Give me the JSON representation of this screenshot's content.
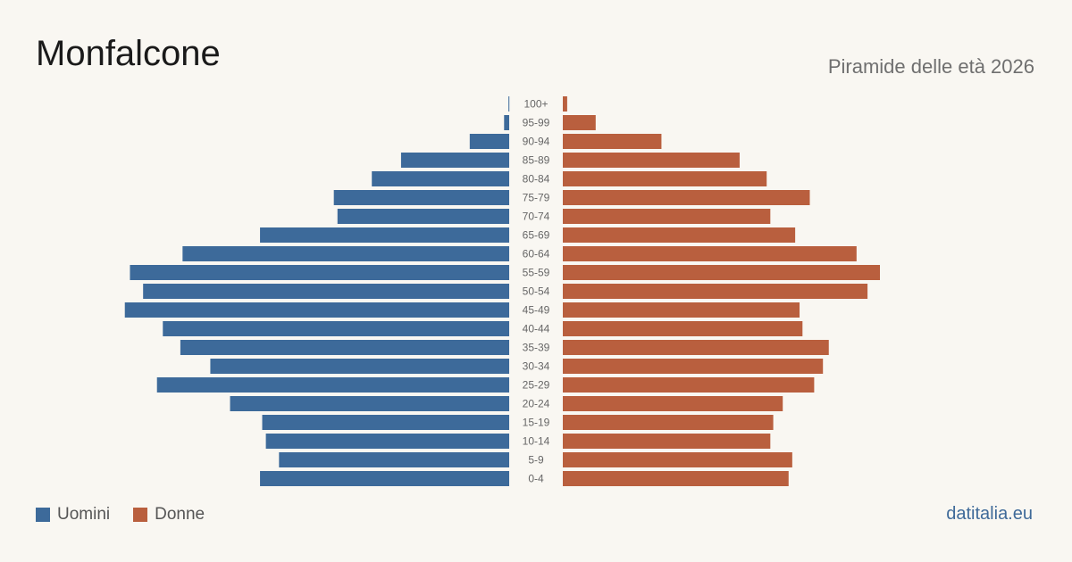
{
  "header": {
    "title": "Monfalcone",
    "subtitle": "Piramide delle età 2026"
  },
  "legend": {
    "men_label": "Uomini",
    "women_label": "Donne",
    "men_color": "#3d6a9a",
    "women_color": "#b95f3e"
  },
  "brand": "datitalia.eu",
  "chart_data": {
    "type": "bar",
    "orientation": "horizontal-pyramid",
    "categories": [
      "100+",
      "95-99",
      "90-94",
      "85-89",
      "80-84",
      "75-79",
      "70-74",
      "65-69",
      "60-64",
      "55-59",
      "50-54",
      "45-49",
      "40-44",
      "35-39",
      "30-34",
      "25-29",
      "20-24",
      "15-19",
      "10-14",
      "5-9",
      "0-4"
    ],
    "series": [
      {
        "name": "Uomini",
        "color": "#3d6a9a",
        "values": [
          1,
          7,
          54,
          148,
          188,
          240,
          235,
          341,
          447,
          519,
          501,
          526,
          474,
          450,
          409,
          482,
          382,
          338,
          333,
          315,
          341
        ]
      },
      {
        "name": "Donne",
        "color": "#b95f3e",
        "values": [
          6,
          45,
          135,
          242,
          279,
          338,
          284,
          318,
          402,
          434,
          417,
          324,
          328,
          364,
          356,
          344,
          301,
          288,
          284,
          314,
          309
        ]
      }
    ]
  }
}
